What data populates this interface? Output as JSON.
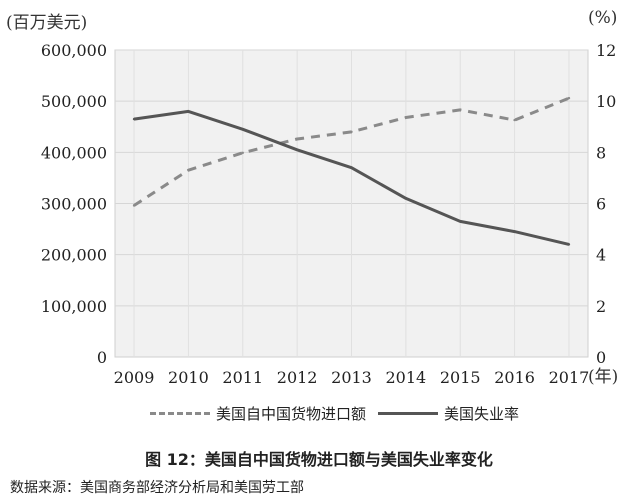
{
  "chart_data": {
    "type": "line",
    "categories": [
      "2009",
      "2010",
      "2011",
      "2012",
      "2013",
      "2014",
      "2015",
      "2016",
      "2017"
    ],
    "x_unit": "(年)",
    "left_axis": {
      "unit": "(百万美元)",
      "ylim": [
        0,
        600000
      ],
      "ticks": [
        "0",
        "100,000",
        "200,000",
        "300,000",
        "400,000",
        "500,000",
        "600,000"
      ]
    },
    "right_axis": {
      "unit": "(%)",
      "ylim": [
        0,
        12
      ],
      "ticks": [
        "0",
        "2",
        "4",
        "6",
        "8",
        "10",
        "12"
      ]
    },
    "series": [
      {
        "name": "美国自中国货物进口额",
        "axis": "left",
        "style": "dashed",
        "color": "#8a8a8a",
        "values": [
          296000,
          365000,
          399000,
          426000,
          440000,
          468000,
          483000,
          463000,
          506000
        ]
      },
      {
        "name": "美国失业率",
        "axis": "right",
        "style": "solid",
        "color": "#555555",
        "values": [
          9.3,
          9.6,
          8.9,
          8.1,
          7.4,
          6.2,
          5.3,
          4.9,
          4.4
        ]
      }
    ],
    "grid": true,
    "legend_position": "bottom"
  },
  "caption": "图 12：美国自中国货物进口额与美国失业率变化",
  "source": "数据来源：美国商务部经济分析局和美国劳工部"
}
